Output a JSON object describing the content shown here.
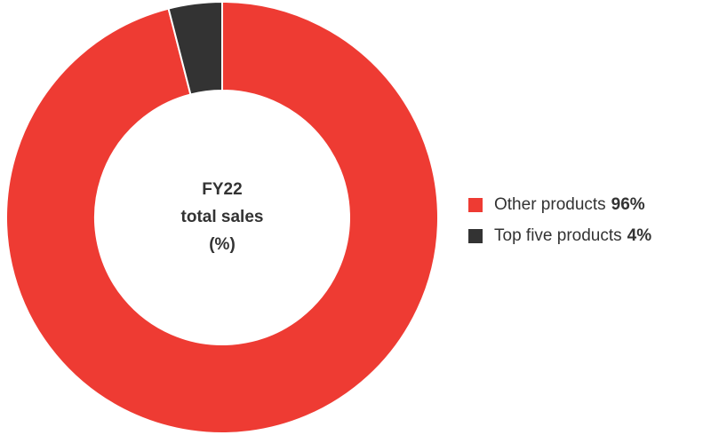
{
  "chart_data": {
    "type": "donut",
    "center_label": [
      "FY22",
      "total sales",
      "(%)"
    ],
    "categories": [
      "Other products",
      "Top five products"
    ],
    "values": [
      96,
      4
    ],
    "value_labels": [
      "96%",
      "4%"
    ],
    "colors": [
      "#ee3b33",
      "#333333"
    ],
    "legend": "right"
  }
}
